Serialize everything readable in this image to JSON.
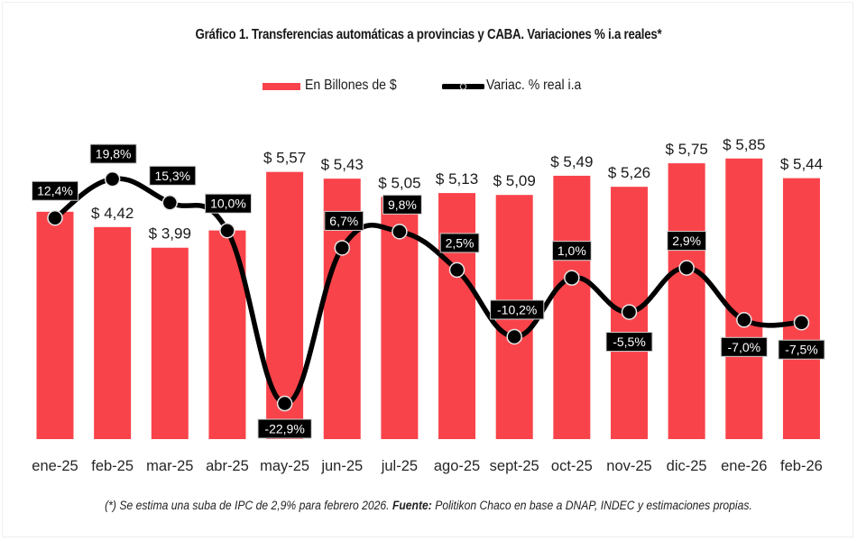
{
  "chart_data": {
    "type": "bar",
    "title": "Gráfico 1. Transferencias automáticas a provincias y CABA. Variaciones % i.a reales*",
    "xlabel": "",
    "ylabel": "",
    "categories": [
      "ene-25",
      "feb-25",
      "mar-25",
      "abr-25",
      "may-25",
      "jun-25",
      "jul-25",
      "ago-25",
      "sept-25",
      "oct-25",
      "nov-25",
      "dic-25",
      "ene-26",
      "feb-26"
    ],
    "series": [
      {
        "name": "En Billones de $",
        "type": "bar",
        "color": "#f9434a",
        "values": [
          4.74,
          4.42,
          3.99,
          4.35,
          5.57,
          5.43,
          5.05,
          5.13,
          5.09,
          5.49,
          5.26,
          5.75,
          5.85,
          5.44
        ],
        "labels": [
          "",
          "$ 4,42",
          "$ 3,99",
          "",
          "$ 5,57",
          "$ 5,43",
          "$ 5,05",
          "$ 5,13",
          "$ 5,09",
          "$ 5,49",
          "$ 5,26",
          "$ 5,75",
          "$ 5,85",
          "$ 5,44"
        ],
        "axis": "primary"
      },
      {
        "name": "Variac. % real i.a",
        "type": "line",
        "color": "#000000",
        "values": [
          12.4,
          19.8,
          15.3,
          10.0,
          -22.9,
          6.7,
          9.8,
          2.5,
          -10.2,
          1.0,
          -5.5,
          2.9,
          -7.0,
          -7.5
        ],
        "labels": [
          "12,4%",
          "19,8%",
          "15,3%",
          "10,0%",
          "-22,9%",
          "6,7%",
          "9,8%",
          "2,5%",
          "-10,2%",
          "1,0%",
          "-5,5%",
          "2,9%",
          "-7,0%",
          "-7,5%"
        ],
        "axis": "secondary"
      }
    ],
    "primary_ylim": [
      0,
      6.5
    ],
    "secondary_ylim": [
      -30,
      30
    ],
    "grid": false,
    "axes_visible": false,
    "legend": "top-center"
  },
  "legend": {
    "bar_label": "En Billones de $",
    "line_label": "Variac. % real i.a"
  },
  "footnote": {
    "note": "(*) Se estima una suba de IPC de 2,9% para febrero 2026.",
    "source_label": "Fuente:",
    "source_text": "Politikon Chaco en base a DNAP, INDEC y estimaciones propias."
  }
}
